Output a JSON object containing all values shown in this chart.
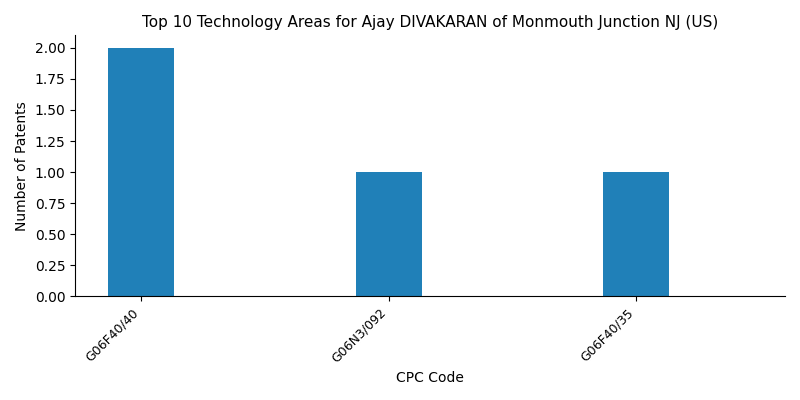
{
  "title": "Top 10 Technology Areas for Ajay DIVAKARAN of Monmouth Junction NJ (US)",
  "xlabel": "CPC Code",
  "ylabel": "Number of Patents",
  "categories": [
    "G06F40/40",
    "G06N3/092",
    "G06F40/35"
  ],
  "values": [
    2,
    1,
    1
  ],
  "bar_color": "#2080b8",
  "ylim": [
    0,
    2.1
  ],
  "yticks": [
    0.0,
    0.25,
    0.5,
    0.75,
    1.0,
    1.25,
    1.5,
    1.75,
    2.0
  ],
  "figsize": [
    8.0,
    4.0
  ],
  "dpi": 100,
  "bar_width": 0.8,
  "x_positions": [
    0,
    3,
    6
  ],
  "xlim": [
    -0.8,
    7.8
  ]
}
